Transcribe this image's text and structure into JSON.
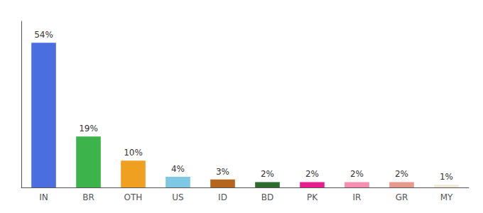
{
  "chart_data": {
    "type": "bar",
    "categories": [
      "IN",
      "BR",
      "OTH",
      "US",
      "ID",
      "BD",
      "PK",
      "IR",
      "GR",
      "MY"
    ],
    "values": [
      54,
      19,
      10,
      4,
      3,
      2,
      2,
      2,
      2,
      1
    ],
    "value_labels": [
      "54%",
      "19%",
      "10%",
      "4%",
      "3%",
      "2%",
      "2%",
      "2%",
      "2%",
      "1%"
    ],
    "colors": [
      "#4a6ee0",
      "#3cb44b",
      "#f0a020",
      "#7ec8e3",
      "#b5651d",
      "#2d6a2d",
      "#e91e8c",
      "#f48fb1",
      "#e8998d",
      "#f0ead6"
    ],
    "ylim": [
      0,
      62
    ],
    "grid": false,
    "data_labels": true,
    "tick_labels": "x"
  }
}
